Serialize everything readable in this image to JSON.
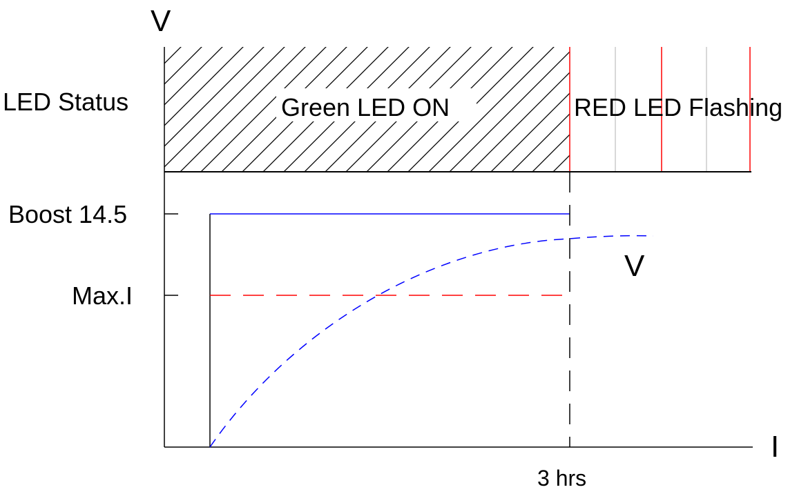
{
  "axes": {
    "y_label": "V",
    "x_label": "I"
  },
  "led_row": {
    "label": "LED Status",
    "green_region_text": "Green LED ON",
    "red_region_text": "RED LED Flashing"
  },
  "levels": {
    "boost_label": "Boost 14.5",
    "max_current_label": "Max.I"
  },
  "curve_label": "V",
  "time_marker": {
    "label": "3 hrs"
  },
  "colors": {
    "axis": "#000000",
    "boost_line": "#0000ff",
    "current_line": "#ff0000",
    "voltage_curve": "#0000ff",
    "red_flash_lines": "#ff0000",
    "grey_flash_lines": "#cccccc",
    "hatch": "#000000"
  }
}
